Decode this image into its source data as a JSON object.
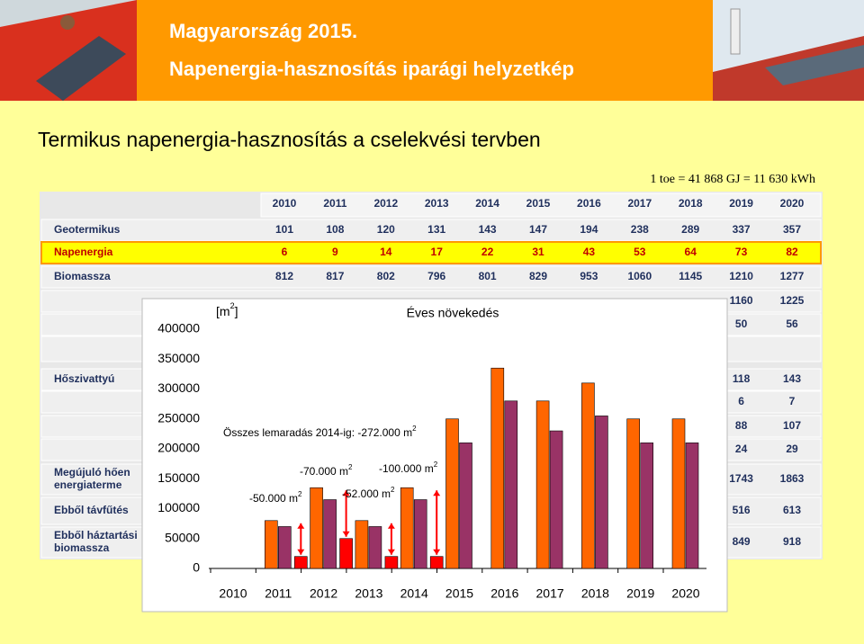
{
  "header": {
    "line1": "Magyarország 2015.",
    "line2": "Napenergia-hasznosítás iparági helyzetkép"
  },
  "title": "Termikus napenergia-hasznosítás a cselekvési tervben",
  "note": "1 toe = 41 868 GJ = 11 630 kWh",
  "table": {
    "columns": [
      "2010",
      "2011",
      "2012",
      "2013",
      "2014",
      "2015",
      "2016",
      "2017",
      "2018",
      "2019",
      "2020"
    ],
    "rows": [
      {
        "label": [
          "Geotermikus"
        ],
        "values": [
          101,
          108,
          120,
          131,
          143,
          147,
          194,
          238,
          289,
          337,
          357
        ]
      },
      {
        "label": [
          "Napenergia"
        ],
        "values": [
          6,
          9,
          14,
          17,
          22,
          31,
          43,
          53,
          64,
          73,
          82
        ],
        "highlight": true
      },
      {
        "label": [
          "Biomassza"
        ],
        "values": [
          812,
          817,
          802,
          796,
          801,
          829,
          953,
          1060,
          1145,
          1210,
          1277
        ]
      },
      {
        "label": [],
        "values": [
          null,
          null,
          null,
          null,
          null,
          null,
          null,
          null,
          null,
          1160,
          1225
        ]
      },
      {
        "label": [],
        "values": [
          null,
          null,
          null,
          null,
          null,
          null,
          null,
          null,
          null,
          50,
          56
        ]
      },
      {
        "label": [],
        "values": [
          null,
          null,
          null,
          null,
          null,
          null,
          null,
          null,
          null,
          null,
          null
        ]
      },
      {
        "label": [
          "Hőszivattyú"
        ],
        "values": [
          null,
          null,
          null,
          null,
          null,
          null,
          null,
          null,
          null,
          118,
          143
        ]
      },
      {
        "label": [],
        "values": [
          null,
          null,
          null,
          null,
          null,
          null,
          null,
          null,
          null,
          6,
          7
        ]
      },
      {
        "label": [],
        "values": [
          null,
          null,
          null,
          null,
          null,
          null,
          null,
          null,
          null,
          88,
          107
        ]
      },
      {
        "label": [],
        "values": [
          null,
          null,
          null,
          null,
          null,
          null,
          null,
          null,
          null,
          24,
          29
        ]
      },
      {
        "label": [
          "Megújuló hően",
          "energiaterme"
        ],
        "values": [
          null,
          null,
          null,
          null,
          null,
          null,
          null,
          null,
          null,
          1743,
          1863
        ]
      },
      {
        "label": [
          "Ebből távfűtés"
        ],
        "values": [
          null,
          null,
          null,
          null,
          null,
          null,
          null,
          null,
          null,
          516,
          613
        ]
      },
      {
        "label": [
          "Ebből háztartási",
          "biomassza"
        ],
        "values": [
          null,
          null,
          null,
          null,
          null,
          null,
          null,
          null,
          null,
          849,
          918
        ]
      }
    ]
  },
  "chart_data": {
    "type": "bar",
    "title": "Éves növekedés",
    "unit": {
      "pre": "[m",
      "sup": "2",
      "post": "]"
    },
    "categories": [
      "2010",
      "2011",
      "2012",
      "2013",
      "2014",
      "2015",
      "2016",
      "2017",
      "2018",
      "2019",
      "2020"
    ],
    "series": [
      {
        "color": "#ff6600",
        "values": [
          null,
          80000,
          135000,
          80000,
          135000,
          250000,
          335000,
          280000,
          310000,
          250000,
          250000
        ]
      },
      {
        "color": "#993366",
        "values": [
          null,
          70000,
          115000,
          70000,
          115000,
          210000,
          280000,
          230000,
          255000,
          210000,
          210000
        ]
      },
      {
        "color": "#ff0000",
        "values": [
          null,
          20000,
          50000,
          20000,
          20000,
          null,
          null,
          null,
          null,
          null,
          null
        ]
      }
    ],
    "ylim": [
      0,
      400000
    ],
    "yticks": [
      0,
      50000,
      100000,
      150000,
      200000,
      250000,
      300000,
      350000,
      400000
    ],
    "annotations": [
      {
        "text": "Összes lemaradás 2014-ig: -272.000 m",
        "sup": "2"
      },
      {
        "text": "-50.000 m",
        "sup": "2"
      },
      {
        "text": "-70.000 m",
        "sup": "2"
      },
      {
        "text": "-52.000 m",
        "sup": "2"
      },
      {
        "text": "-100.000 m",
        "sup": "2"
      }
    ]
  }
}
